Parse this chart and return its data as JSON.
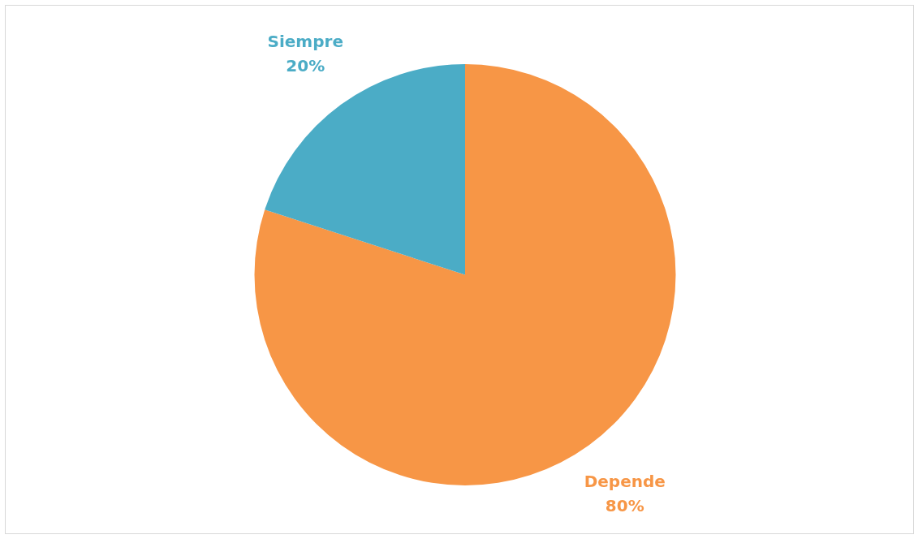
{
  "chart_data": {
    "type": "pie",
    "categories": [
      "Depende",
      "Siempre"
    ],
    "values": [
      80,
      20
    ],
    "colors": [
      "#f79646",
      "#4bacc6"
    ],
    "value_labels": [
      "80%",
      "20%"
    ],
    "legend": false
  }
}
